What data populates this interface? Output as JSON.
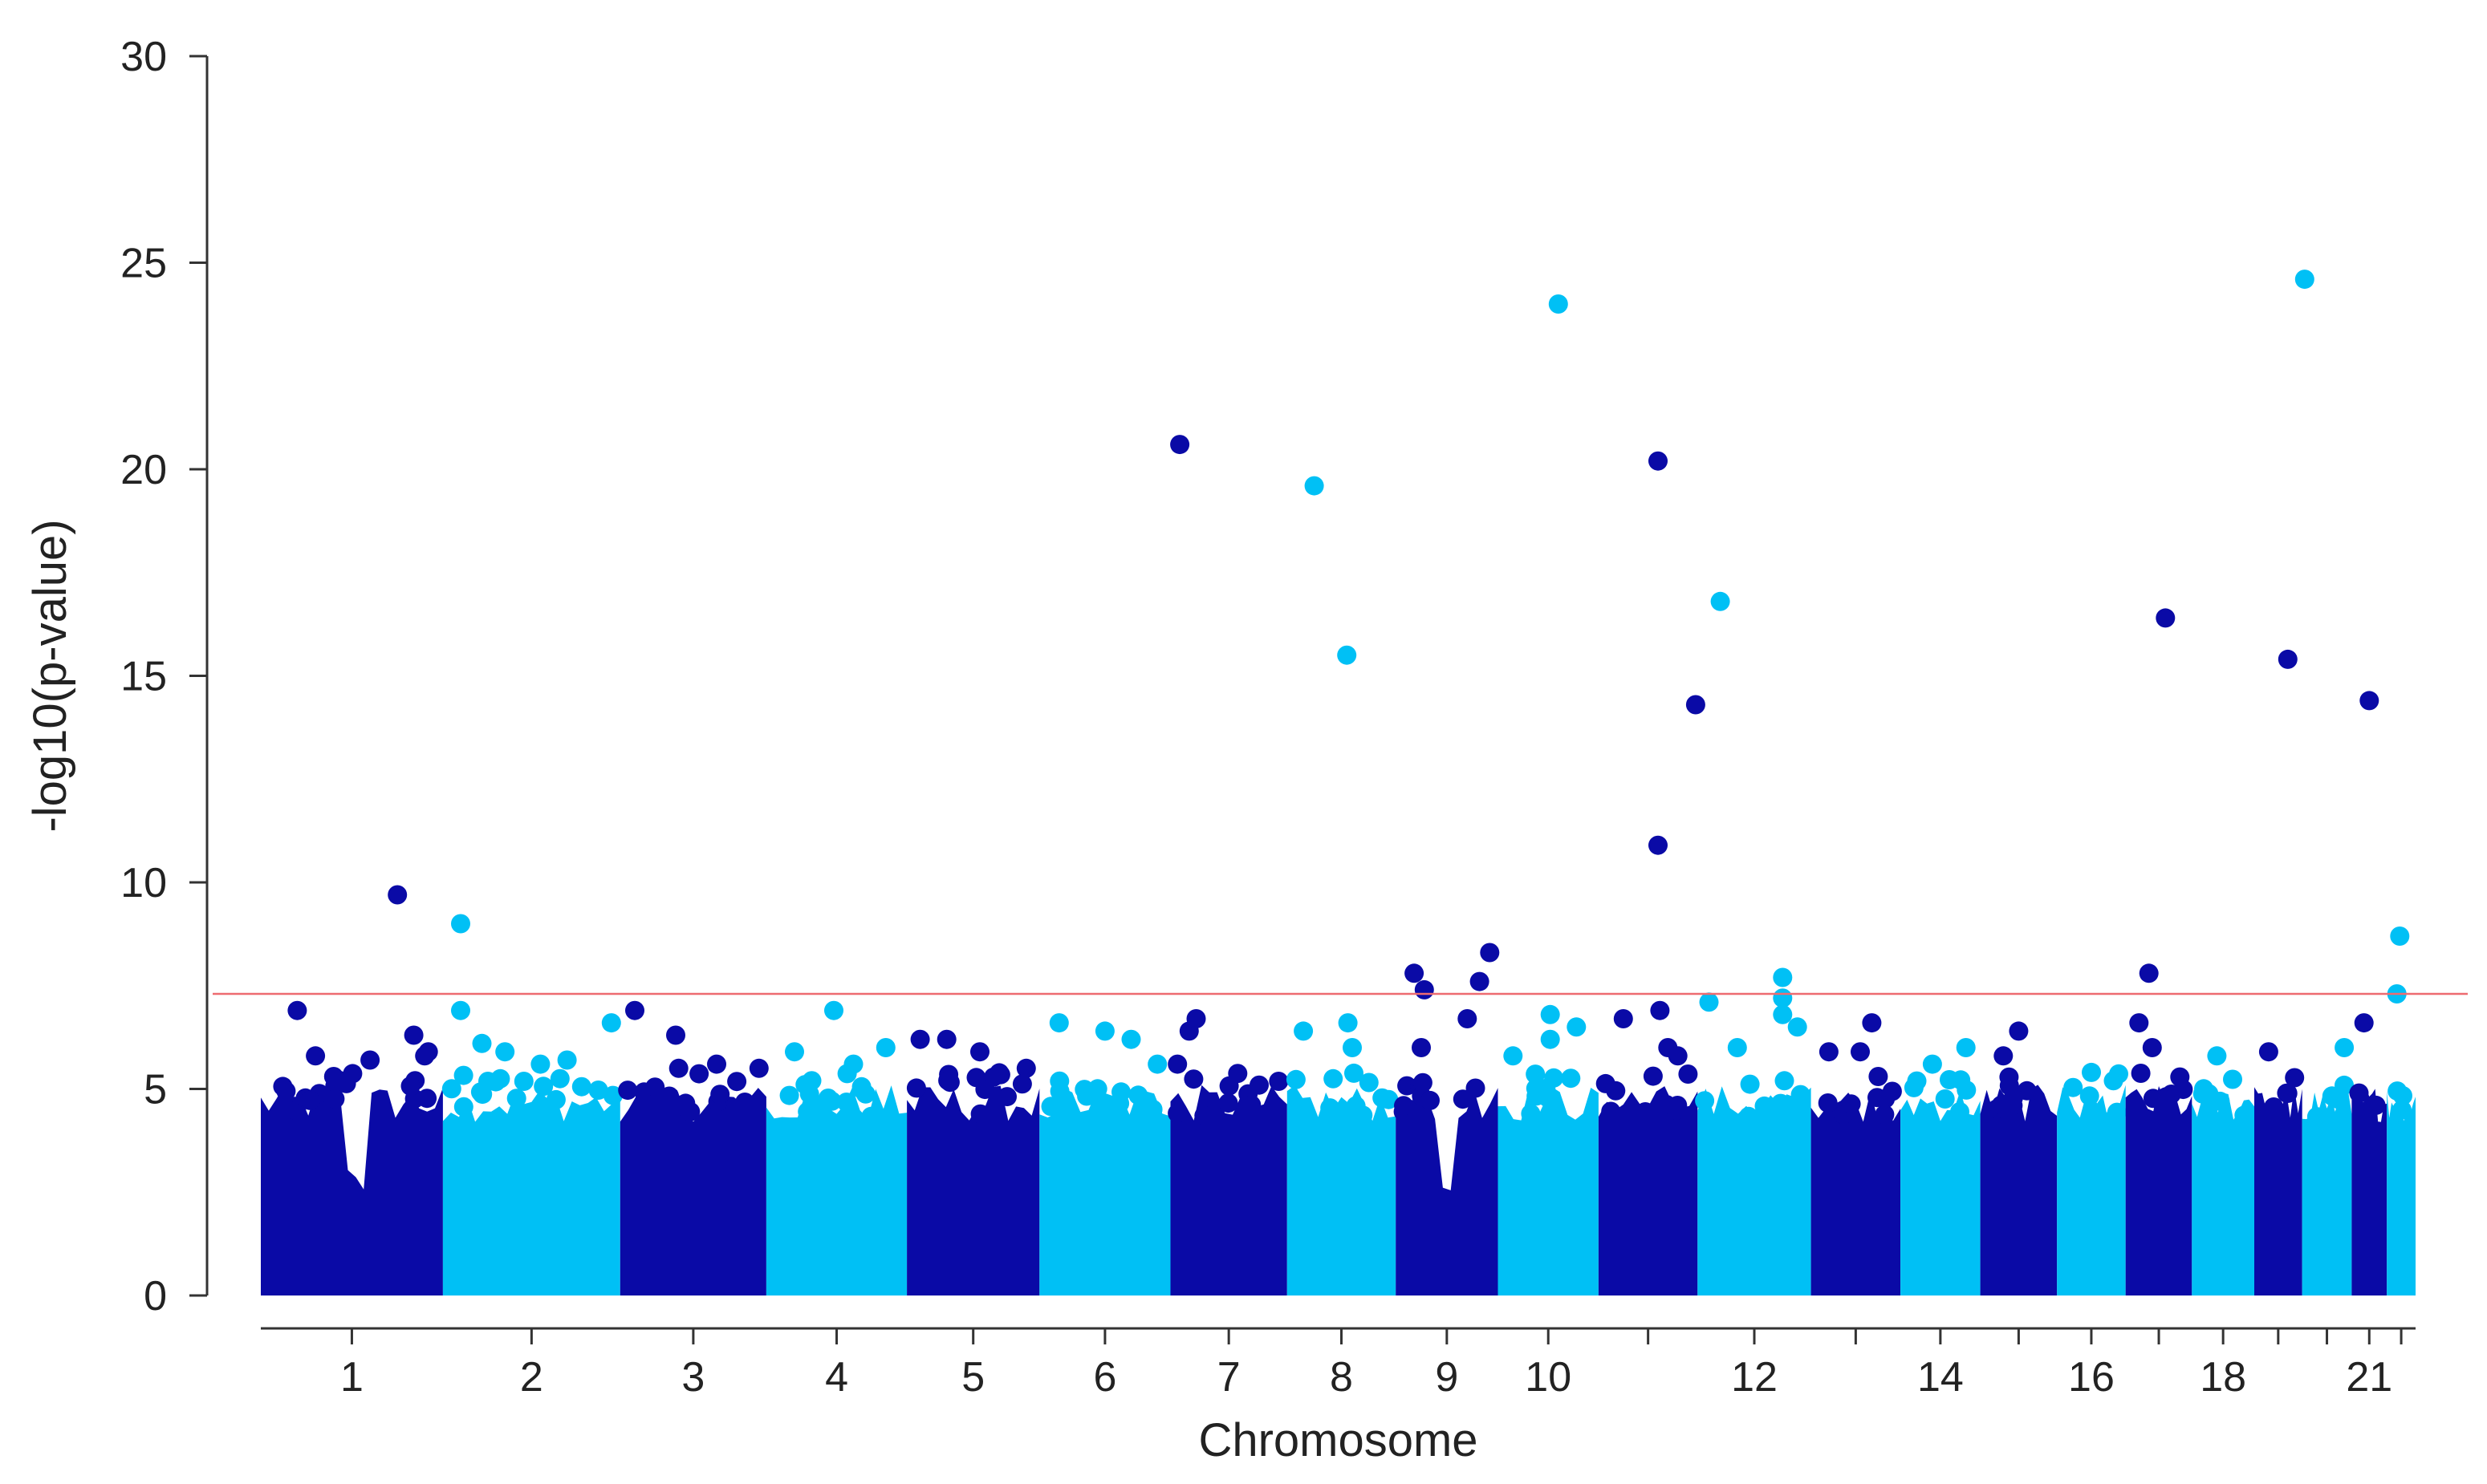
{
  "chart_data": {
    "type": "scatter",
    "subtype": "manhattan",
    "title": "",
    "xlabel": "Chromosome",
    "ylabel": "-log10(p-value)",
    "ylim": [
      0,
      30
    ],
    "y_ticks": [
      0,
      5,
      10,
      15,
      20,
      25,
      30
    ],
    "grid": false,
    "legend": "none",
    "colors": {
      "odd": "#0a0aa6",
      "even": "#00c0f5",
      "threshold": "#ee6b70"
    },
    "threshold": 7.3,
    "chromosomes": [
      {
        "chr": "1",
        "label": "1",
        "lo": 0,
        "hi": 8,
        "dip": 0.7
      },
      {
        "chr": "2",
        "label": "2",
        "lo": 0,
        "hi": 7,
        "dip": 0
      },
      {
        "chr": "3",
        "label": "3",
        "lo": 0,
        "hi": 6,
        "dip": 0
      },
      {
        "chr": "4",
        "label": "4",
        "lo": 0,
        "hi": 6,
        "dip": 0
      },
      {
        "chr": "5",
        "label": "5",
        "lo": 0,
        "hi": 6,
        "dip": 0
      },
      {
        "chr": "6",
        "label": "6",
        "lo": 0,
        "hi": 6,
        "dip": 0
      },
      {
        "chr": "7",
        "label": "7",
        "lo": 0,
        "hi": 6,
        "dip": 0
      },
      {
        "chr": "8",
        "label": "8",
        "lo": 0,
        "hi": 5,
        "dip": 0
      },
      {
        "chr": "9",
        "label": "9",
        "lo": 0,
        "hi": 5,
        "dip": 0.5
      },
      {
        "chr": "10",
        "label": "10",
        "lo": 0,
        "hi": 5,
        "dip": 0
      },
      {
        "chr": "11",
        "label": "",
        "lo": 0,
        "hi": 5,
        "dip": 0
      },
      {
        "chr": "12",
        "label": "12",
        "lo": 0,
        "hi": 5,
        "dip": 0
      },
      {
        "chr": "13",
        "label": "",
        "lo": 0,
        "hi": 4,
        "dip": 0
      },
      {
        "chr": "14",
        "label": "14",
        "lo": 0,
        "hi": 4,
        "dip": 0
      },
      {
        "chr": "15",
        "label": "",
        "lo": 0,
        "hi": 3,
        "dip": 0
      },
      {
        "chr": "16",
        "label": "16",
        "lo": 0,
        "hi": 3,
        "dip": 0
      },
      {
        "chr": "17",
        "label": "",
        "lo": 0,
        "hi": 2.5,
        "dip": 0
      },
      {
        "chr": "18",
        "label": "18",
        "lo": 0,
        "hi": 2.5,
        "dip": 0
      },
      {
        "chr": "19",
        "label": "",
        "lo": 0,
        "hi": 2,
        "dip": 0
      },
      {
        "chr": "20",
        "label": "",
        "lo": 0,
        "hi": 2,
        "dip": 0
      },
      {
        "chr": "21",
        "label": "21",
        "lo": 0,
        "hi": 1.5,
        "dip": 0
      },
      {
        "chr": "22",
        "label": "",
        "lo": 0,
        "hi": 1.2,
        "dip": 0
      }
    ],
    "points": [
      {
        "chr": 1,
        "pos": 0.2,
        "y": 6.9
      },
      {
        "chr": 1,
        "pos": 0.3,
        "y": 5.8
      },
      {
        "chr": 1,
        "pos": 0.6,
        "y": 5.7
      },
      {
        "chr": 1,
        "pos": 0.9,
        "y": 5.8
      },
      {
        "chr": 1,
        "pos": 0.4,
        "y": 5.3
      },
      {
        "chr": 1,
        "pos": 0.75,
        "y": 9.7
      },
      {
        "chr": 1,
        "pos": 0.84,
        "y": 6.3
      },
      {
        "chr": 1,
        "pos": 0.92,
        "y": 5.9
      },
      {
        "chr": 2,
        "pos": 0.1,
        "y": 9.0
      },
      {
        "chr": 2,
        "pos": 0.1,
        "y": 6.9
      },
      {
        "chr": 2,
        "pos": 0.22,
        "y": 6.1
      },
      {
        "chr": 2,
        "pos": 0.35,
        "y": 5.9
      },
      {
        "chr": 2,
        "pos": 0.55,
        "y": 5.6
      },
      {
        "chr": 2,
        "pos": 0.7,
        "y": 5.7
      },
      {
        "chr": 2,
        "pos": 0.95,
        "y": 6.6
      },
      {
        "chr": 3,
        "pos": 0.1,
        "y": 6.9
      },
      {
        "chr": 3,
        "pos": 0.38,
        "y": 6.3
      },
      {
        "chr": 3,
        "pos": 0.4,
        "y": 5.5
      },
      {
        "chr": 3,
        "pos": 0.66,
        "y": 5.6
      },
      {
        "chr": 3,
        "pos": 0.95,
        "y": 5.5
      },
      {
        "chr": 4,
        "pos": 0.48,
        "y": 6.9
      },
      {
        "chr": 4,
        "pos": 0.2,
        "y": 5.9
      },
      {
        "chr": 4,
        "pos": 0.62,
        "y": 5.6
      },
      {
        "chr": 4,
        "pos": 0.85,
        "y": 6.0
      },
      {
        "chr": 5,
        "pos": 0.1,
        "y": 6.2
      },
      {
        "chr": 5,
        "pos": 0.3,
        "y": 6.2
      },
      {
        "chr": 5,
        "pos": 0.55,
        "y": 5.9
      },
      {
        "chr": 5,
        "pos": 0.9,
        "y": 5.5
      },
      {
        "chr": 6,
        "pos": 0.15,
        "y": 6.6
      },
      {
        "chr": 6,
        "pos": 0.5,
        "y": 6.4
      },
      {
        "chr": 6,
        "pos": 0.7,
        "y": 6.2
      },
      {
        "chr": 6,
        "pos": 0.9,
        "y": 5.6
      },
      {
        "chr": 7,
        "pos": 0.08,
        "y": 20.6
      },
      {
        "chr": 7,
        "pos": 0.16,
        "y": 6.4
      },
      {
        "chr": 7,
        "pos": 0.22,
        "y": 6.7
      },
      {
        "chr": 7,
        "pos": 0.06,
        "y": 5.6
      },
      {
        "chr": 8,
        "pos": 0.25,
        "y": 19.6
      },
      {
        "chr": 8,
        "pos": 0.55,
        "y": 15.5
      },
      {
        "chr": 8,
        "pos": 0.15,
        "y": 6.4
      },
      {
        "chr": 8,
        "pos": 0.56,
        "y": 6.6
      },
      {
        "chr": 8,
        "pos": 0.6,
        "y": 6.0
      },
      {
        "chr": 9,
        "pos": 0.18,
        "y": 7.8
      },
      {
        "chr": 9,
        "pos": 0.28,
        "y": 7.4
      },
      {
        "chr": 9,
        "pos": 0.25,
        "y": 6.0
      },
      {
        "chr": 9,
        "pos": 0.7,
        "y": 6.7
      },
      {
        "chr": 9,
        "pos": 0.82,
        "y": 7.6
      },
      {
        "chr": 9,
        "pos": 0.92,
        "y": 8.3
      },
      {
        "chr": 10,
        "pos": 0.6,
        "y": 24.0
      },
      {
        "chr": 10,
        "pos": 0.52,
        "y": 6.8
      },
      {
        "chr": 10,
        "pos": 0.78,
        "y": 6.5
      },
      {
        "chr": 10,
        "pos": 0.15,
        "y": 5.8
      },
      {
        "chr": 10,
        "pos": 0.52,
        "y": 6.2
      },
      {
        "chr": 11,
        "pos": 0.6,
        "y": 20.2
      },
      {
        "chr": 11,
        "pos": 0.6,
        "y": 10.9
      },
      {
        "chr": 11,
        "pos": 0.62,
        "y": 6.9
      },
      {
        "chr": 11,
        "pos": 0.25,
        "y": 6.7
      },
      {
        "chr": 11,
        "pos": 0.7,
        "y": 6.0
      },
      {
        "chr": 11,
        "pos": 0.8,
        "y": 5.8
      },
      {
        "chr": 11,
        "pos": 0.98,
        "y": 14.3
      },
      {
        "chr": 12,
        "pos": 0.2,
        "y": 16.8
      },
      {
        "chr": 12,
        "pos": 0.1,
        "y": 7.1
      },
      {
        "chr": 12,
        "pos": 0.75,
        "y": 7.7
      },
      {
        "chr": 12,
        "pos": 0.75,
        "y": 7.2
      },
      {
        "chr": 12,
        "pos": 0.75,
        "y": 6.8
      },
      {
        "chr": 12,
        "pos": 0.88,
        "y": 6.5
      },
      {
        "chr": 12,
        "pos": 0.35,
        "y": 6.0
      },
      {
        "chr": 13,
        "pos": 0.2,
        "y": 5.9
      },
      {
        "chr": 13,
        "pos": 0.55,
        "y": 5.9
      },
      {
        "chr": 13,
        "pos": 0.68,
        "y": 6.6
      },
      {
        "chr": 14,
        "pos": 0.82,
        "y": 6.0
      },
      {
        "chr": 14,
        "pos": 0.4,
        "y": 5.6
      },
      {
        "chr": 15,
        "pos": 0.5,
        "y": 6.4
      },
      {
        "chr": 15,
        "pos": 0.3,
        "y": 5.8
      },
      {
        "chr": 16,
        "pos": 0.5,
        "y": 5.4
      },
      {
        "chr": 17,
        "pos": 0.2,
        "y": 6.6
      },
      {
        "chr": 17,
        "pos": 0.35,
        "y": 7.8
      },
      {
        "chr": 17,
        "pos": 0.6,
        "y": 16.4
      },
      {
        "chr": 17,
        "pos": 0.4,
        "y": 6.0
      },
      {
        "chr": 18,
        "pos": 0.4,
        "y": 5.8
      },
      {
        "chr": 19,
        "pos": 0.7,
        "y": 15.4
      },
      {
        "chr": 19,
        "pos": 0.3,
        "y": 5.9
      },
      {
        "chr": 20,
        "pos": 0.05,
        "y": 24.6
      },
      {
        "chr": 20,
        "pos": 0.85,
        "y": 6.0
      },
      {
        "chr": 21,
        "pos": 0.5,
        "y": 14.4
      },
      {
        "chr": 21,
        "pos": 0.35,
        "y": 6.6
      },
      {
        "chr": 22,
        "pos": 0.45,
        "y": 8.7
      },
      {
        "chr": 22,
        "pos": 0.35,
        "y": 7.3
      }
    ]
  }
}
